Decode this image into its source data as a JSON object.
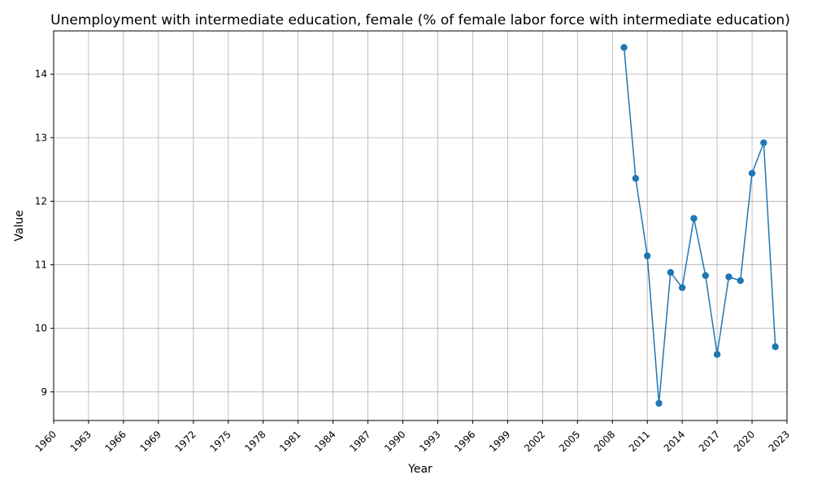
{
  "chart_data": {
    "type": "line",
    "title": "Unemployment with intermediate education, female (% of female labor force with intermediate education)",
    "xlabel": "Year",
    "ylabel": "Value",
    "xlim": [
      1960,
      2023
    ],
    "ylim": [
      8.55,
      14.68
    ],
    "grid": true,
    "x_ticks": [
      1960,
      1963,
      1966,
      1969,
      1972,
      1975,
      1978,
      1981,
      1984,
      1987,
      1990,
      1993,
      1996,
      1999,
      2002,
      2005,
      2008,
      2011,
      2014,
      2017,
      2020,
      2023
    ],
    "y_ticks": [
      9,
      10,
      11,
      12,
      13,
      14
    ],
    "series": [
      {
        "color": "#1f77b4",
        "x": [
          2009,
          2010,
          2011,
          2012,
          2013,
          2014,
          2015,
          2016,
          2017,
          2018,
          2019,
          2020,
          2021,
          2022
        ],
        "y": [
          14.42,
          12.36,
          11.14,
          8.82,
          10.88,
          10.64,
          11.73,
          10.83,
          9.59,
          10.81,
          10.75,
          12.44,
          12.92,
          9.71
        ]
      }
    ]
  }
}
